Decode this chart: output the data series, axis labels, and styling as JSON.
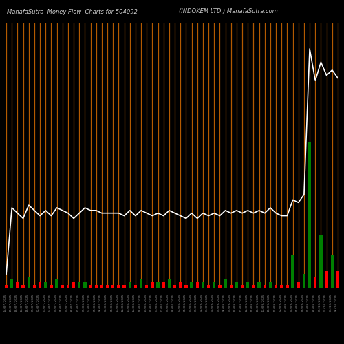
{
  "title_left": "ManafaSutra  Money Flow  Charts for 504092",
  "title_right": "(INDOKEM LTD.) ManafaSutra.com",
  "background_color": "#000000",
  "line_color": "#ffffff",
  "orange_vline_color": "#b35a00",
  "labels": [
    "14/07/2025",
    "15/07/2025",
    "16/07/2025",
    "17/07/2025",
    "18/07/2025",
    "21/07/2025",
    "22/07/2025",
    "23/07/2025",
    "24/07/2025",
    "25/07/2025",
    "28/07/2025",
    "29/07/2025",
    "30/07/2025",
    "31/07/2025",
    "01/08/2025",
    "04/08/2025",
    "05/08/2025",
    "06/08/2025",
    "07/08/2025",
    "08/08/2025",
    "11/08/2025",
    "12/08/2025",
    "13/08/2025",
    "14/08/2025",
    "18/08/2025",
    "19/08/2025",
    "20/08/2025",
    "21/08/2025",
    "22/08/2025",
    "25/08/2025",
    "26/08/2025",
    "27/08/2025",
    "28/08/2025",
    "29/08/2025",
    "01/09/2025",
    "02/09/2025",
    "03/09/2025",
    "04/09/2025",
    "05/09/2025",
    "08/09/2025",
    "09/09/2025",
    "10/09/2025",
    "11/09/2025",
    "12/09/2025",
    "15/09/2025",
    "16/09/2025",
    "17/09/2025",
    "18/09/2025",
    "19/09/2025",
    "22/09/2025",
    "23/09/2025",
    "24/09/2025",
    "25/09/2025",
    "26/09/2025",
    "29/09/2025",
    "30/09/2025",
    "01/10/2025",
    "02/10/2025",
    "03/10/2025",
    "06/10/2025"
  ],
  "bar_values": [
    1,
    3,
    2,
    1,
    4,
    1,
    2,
    2,
    1,
    3,
    1,
    1,
    2,
    2,
    2,
    1,
    1,
    1,
    1,
    1,
    1,
    1,
    2,
    1,
    3,
    1,
    2,
    2,
    2,
    3,
    1,
    2,
    1,
    2,
    2,
    2,
    1,
    2,
    1,
    3,
    1,
    2,
    1,
    2,
    1,
    2,
    1,
    2,
    1,
    1,
    1,
    12,
    2,
    5,
    55,
    4,
    20,
    6,
    12,
    6
  ],
  "bar_colors": [
    "red",
    "green",
    "red",
    "red",
    "green",
    "red",
    "red",
    "green",
    "red",
    "green",
    "red",
    "red",
    "red",
    "green",
    "green",
    "red",
    "red",
    "red",
    "red",
    "red",
    "red",
    "red",
    "green",
    "red",
    "green",
    "red",
    "red",
    "green",
    "red",
    "green",
    "red",
    "red",
    "red",
    "green",
    "red",
    "green",
    "red",
    "green",
    "red",
    "green",
    "red",
    "green",
    "red",
    "green",
    "red",
    "green",
    "red",
    "green",
    "red",
    "red",
    "red",
    "green",
    "red",
    "green",
    "green",
    "red",
    "green",
    "red",
    "green",
    "red"
  ],
  "line_values": [
    5,
    30,
    28,
    26,
    31,
    29,
    27,
    29,
    27,
    30,
    29,
    28,
    26,
    28,
    30,
    29,
    29,
    28,
    28,
    28,
    28,
    27,
    29,
    27,
    29,
    28,
    27,
    28,
    27,
    29,
    28,
    27,
    26,
    28,
    26,
    28,
    27,
    28,
    27,
    29,
    28,
    29,
    28,
    29,
    28,
    29,
    28,
    30,
    28,
    27,
    27,
    33,
    32,
    35,
    90,
    78,
    85,
    80,
    82,
    79
  ]
}
